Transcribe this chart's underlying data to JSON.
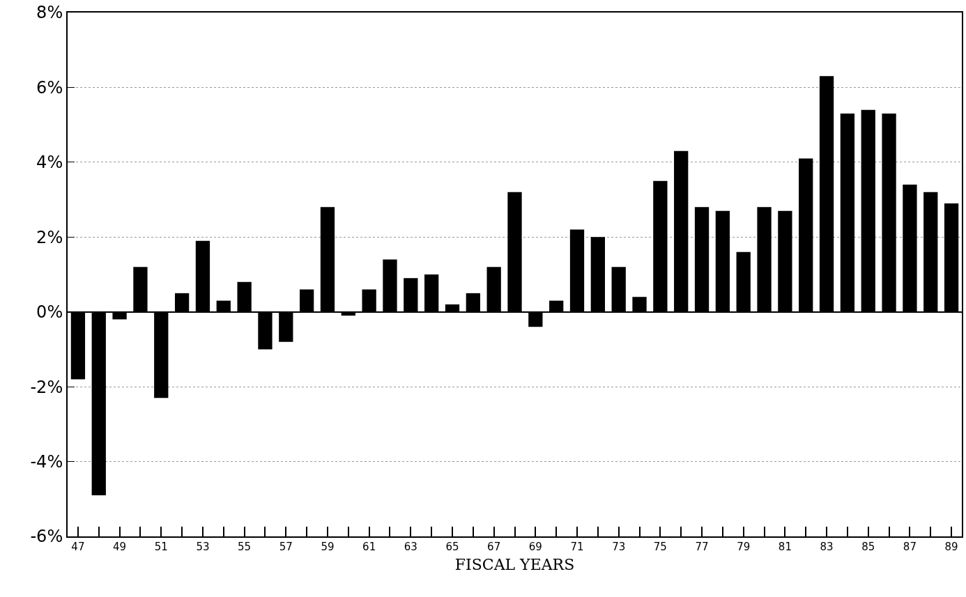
{
  "chart_data": {
    "type": "bar",
    "xlabel": "FISCAL YEARS",
    "categories": [
      "47",
      null,
      "49",
      null,
      "51",
      null,
      "53",
      null,
      "55",
      null,
      "57",
      null,
      "59",
      null,
      "61",
      null,
      "63",
      null,
      "65",
      null,
      "67",
      null,
      "69",
      null,
      "71",
      null,
      "73",
      null,
      "75",
      null,
      "77",
      null,
      "79",
      null,
      "81",
      null,
      "83",
      null,
      "85",
      null,
      "87",
      null,
      "89"
    ],
    "values": [
      -1.8,
      -4.9,
      -0.2,
      1.2,
      -2.3,
      0.5,
      1.9,
      0.3,
      0.8,
      -1.0,
      -0.8,
      0.6,
      2.8,
      -0.1,
      0.6,
      1.4,
      0.9,
      1.0,
      0.2,
      0.5,
      1.2,
      3.2,
      -0.4,
      0.3,
      2.2,
      2.0,
      1.2,
      0.4,
      3.5,
      4.3,
      2.8,
      2.7,
      1.6,
      2.8,
      2.7,
      4.1,
      6.3,
      5.3,
      5.4,
      5.3,
      3.4,
      3.2,
      2.9
    ],
    "color": "#000000",
    "ylim": [
      -6,
      8
    ],
    "yticks": [
      {
        "value": -6,
        "label": "-6%"
      },
      {
        "value": -4,
        "label": "-4%"
      },
      {
        "value": -2,
        "label": "-2%"
      },
      {
        "value": 0,
        "label": "0%"
      },
      {
        "value": 2,
        "label": "2%"
      },
      {
        "value": 4,
        "label": "4%"
      },
      {
        "value": 6,
        "label": "6%"
      },
      {
        "value": 8,
        "label": "8%"
      }
    ],
    "grid": "y"
  }
}
